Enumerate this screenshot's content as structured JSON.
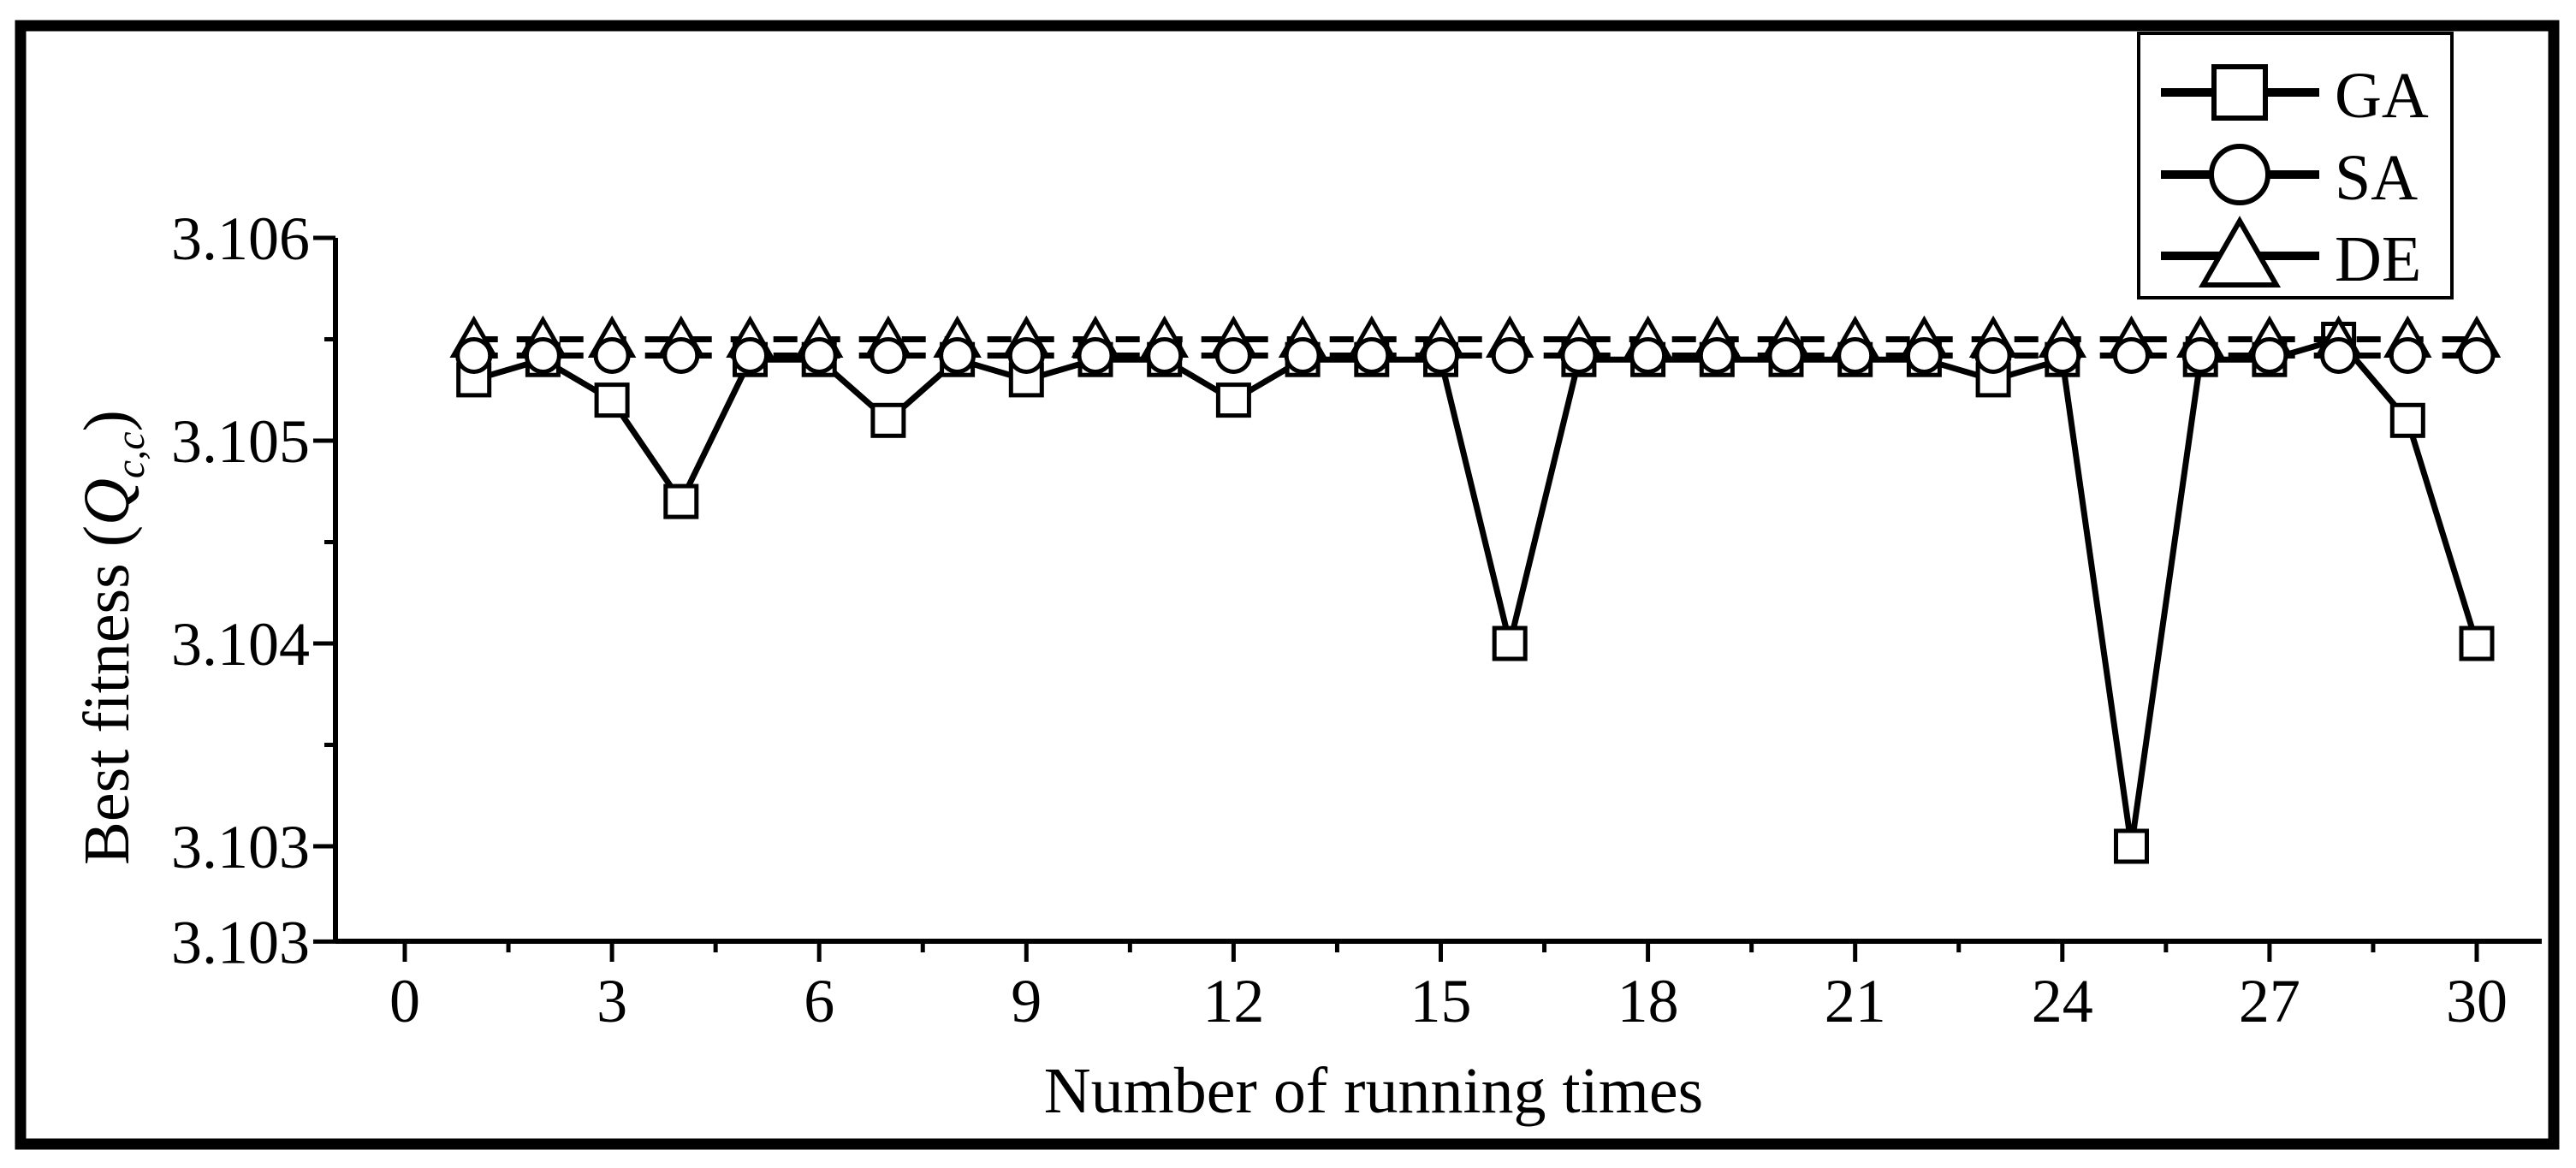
{
  "colors": {
    "foreground": "#000000",
    "background": "#ffffff"
  },
  "chart_data": {
    "type": "line",
    "title": "",
    "xlabel": "Number of running times",
    "ylabel": "Best fitness (Q_c,c)",
    "ylabel_parts": {
      "pre": "Best fitness (",
      "symbol": "Q",
      "subscript": "c,c",
      "post": ")"
    },
    "xlim": [
      -1,
      30.95
    ],
    "ylim": [
      3.10253,
      3.106
    ],
    "grid": false,
    "legend_position": "top-right",
    "x": [
      1,
      2,
      3,
      4,
      5,
      6,
      7,
      8,
      9,
      10,
      11,
      12,
      13,
      14,
      15,
      16,
      17,
      18,
      19,
      20,
      21,
      22,
      23,
      24,
      25,
      26,
      27,
      28,
      29,
      30
    ],
    "series": [
      {
        "name": "GA",
        "marker": "square",
        "line": "solid",
        "values": [
          3.1053,
          3.1054,
          3.1052,
          3.1047,
          3.1054,
          3.1054,
          3.1051,
          3.1054,
          3.1053,
          3.1054,
          3.1054,
          3.1052,
          3.1054,
          3.1054,
          3.1054,
          3.104,
          3.1054,
          3.1054,
          3.1054,
          3.1054,
          3.1054,
          3.1054,
          3.1053,
          3.1054,
          3.103,
          3.1054,
          3.1054,
          3.1055,
          3.1051,
          3.104
        ]
      },
      {
        "name": "SA",
        "marker": "circle",
        "line": "dashed",
        "values": [
          3.10542,
          3.10542,
          3.10542,
          3.10542,
          3.10542,
          3.10542,
          3.10542,
          3.10542,
          3.10542,
          3.10542,
          3.10542,
          3.10542,
          3.10542,
          3.10542,
          3.10542,
          3.10542,
          3.10542,
          3.10542,
          3.10542,
          3.10542,
          3.10542,
          3.10542,
          3.10542,
          3.10542,
          3.10542,
          3.10542,
          3.10542,
          3.10542,
          3.10542,
          3.10542
        ]
      },
      {
        "name": "DE",
        "marker": "triangle",
        "line": "dashed",
        "values": [
          3.1055,
          3.1055,
          3.1055,
          3.1055,
          3.1055,
          3.1055,
          3.1055,
          3.1055,
          3.1055,
          3.1055,
          3.1055,
          3.1055,
          3.1055,
          3.1055,
          3.1055,
          3.1055,
          3.1055,
          3.1055,
          3.1055,
          3.1055,
          3.1055,
          3.1055,
          3.1055,
          3.1055,
          3.1055,
          3.1055,
          3.1055,
          3.1055,
          3.1055,
          3.1055
        ]
      }
    ],
    "x_ticks_major": [
      {
        "value": 0,
        "label": "0"
      },
      {
        "value": 3,
        "label": "3"
      },
      {
        "value": 6,
        "label": "6"
      },
      {
        "value": 9,
        "label": "9"
      },
      {
        "value": 12,
        "label": "12"
      },
      {
        "value": 15,
        "label": "15"
      },
      {
        "value": 18,
        "label": "18"
      },
      {
        "value": 21,
        "label": "21"
      },
      {
        "value": 24,
        "label": "24"
      },
      {
        "value": 27,
        "label": "27"
      },
      {
        "value": 30,
        "label": "30"
      }
    ],
    "x_ticks_minor": [
      1.5,
      4.5,
      7.5,
      10.5,
      13.5,
      16.5,
      19.5,
      22.5,
      25.5,
      28.5
    ],
    "y_ticks_major": [
      {
        "value": 3.106,
        "label": "3.106"
      },
      {
        "value": 3.105,
        "label": "3.105"
      },
      {
        "value": 3.104,
        "label": "3.104"
      },
      {
        "value": 3.103,
        "label": "3.103"
      },
      {
        "value": 3.10253,
        "label": "3.103"
      }
    ],
    "y_ticks_minor": [
      3.1055,
      3.1045,
      3.1035
    ]
  },
  "legend": {
    "entries": [
      {
        "label": "GA",
        "marker": "square"
      },
      {
        "label": "SA",
        "marker": "circle"
      },
      {
        "label": "DE",
        "marker": "triangle"
      }
    ]
  }
}
